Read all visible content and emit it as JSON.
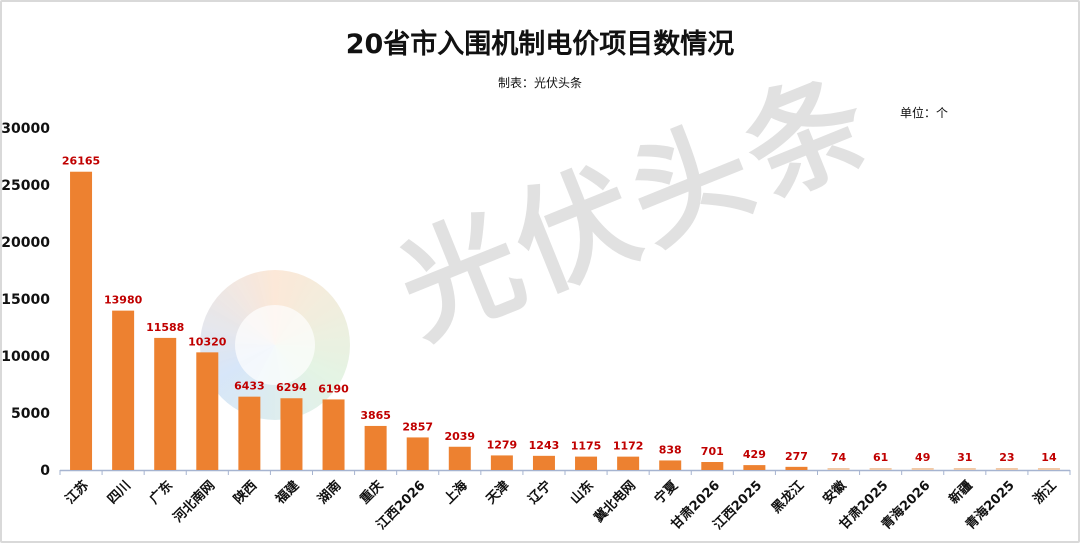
{
  "chart_data": {
    "type": "bar",
    "title": "20省市入围机制电价项目数情况",
    "subtitle": "制表：光伏头条",
    "unit_label": "单位：个",
    "xlabel": "",
    "ylabel": "",
    "ylim": [
      0,
      30000
    ],
    "yticks": [
      0,
      5000,
      10000,
      15000,
      20000,
      25000,
      30000
    ],
    "grid": false,
    "categories": [
      "江苏",
      "四川",
      "广东",
      "河北南网",
      "陕西",
      "福建",
      "湖南",
      "重庆",
      "江西2026",
      "上海",
      "天津",
      "辽宁",
      "山东",
      "冀北电网",
      "宁夏",
      "甘肃2026",
      "江西2025",
      "黑龙江",
      "安徽",
      "甘肃2025",
      "青海2026",
      "新疆",
      "青海2025",
      "浙江"
    ],
    "values": [
      26165,
      13980,
      11588,
      10320,
      6433,
      6294,
      6190,
      3865,
      2857,
      2039,
      1279,
      1243,
      1175,
      1172,
      838,
      701,
      429,
      277,
      74,
      61,
      49,
      31,
      23,
      14
    ],
    "bar_color": "#ed8130",
    "label_color": "#c00000",
    "watermark": "光伏头条"
  }
}
